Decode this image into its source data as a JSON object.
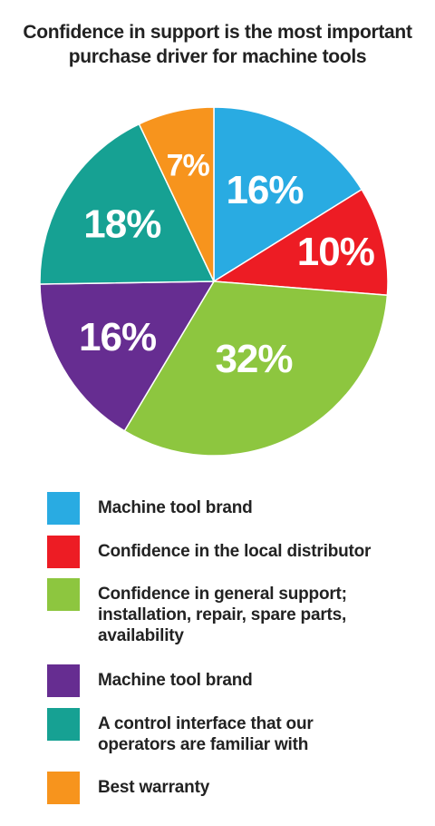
{
  "chart_data": {
    "type": "pie",
    "title": "Confidence in support is the most important purchase driver for machine tools",
    "title_lines": [
      "Confidence in support is the most important",
      "purchase driver for machine tools"
    ],
    "slices": [
      {
        "label": "Machine tool brand",
        "value": 16,
        "display": "16%",
        "color": "#29abe2"
      },
      {
        "label": "Confidence in the local distributor",
        "value": 10,
        "display": "10%",
        "color": "#ed1c24"
      },
      {
        "label": "Confidence in general support; installation, repair, spare parts, availability",
        "label_lines": "Confidence in general support;\ninstallation, repair, spare parts,\navailability",
        "value": 32,
        "display": "32%",
        "color": "#8dc63f"
      },
      {
        "label": "Machine tool brand",
        "value": 16,
        "display": "16%",
        "color": "#662d91"
      },
      {
        "label": "A control interface that our operators are familiar with",
        "label_lines": "A control interface that our\noperators are familiar with",
        "value": 18,
        "display": "18%",
        "color": "#16a193"
      },
      {
        "label": "Best warranty",
        "value": 7,
        "display": "7%",
        "color": "#f7941d"
      }
    ],
    "legend_position": "bottom",
    "start_angle": "12 o'clock",
    "direction": "clockwise"
  }
}
